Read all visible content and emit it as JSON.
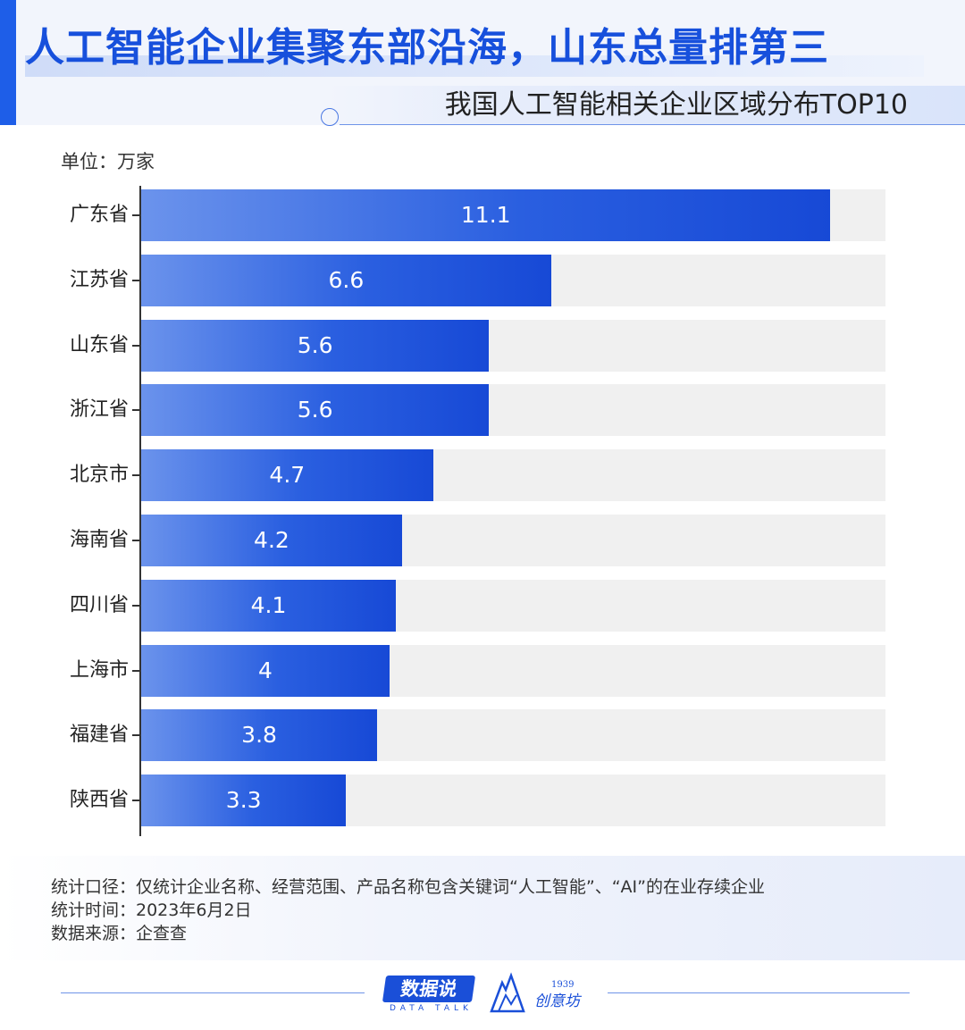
{
  "header": {
    "title": "人工智能企业集聚东部沿海，山东总量排第三",
    "subtitle": "我国人工智能相关企业区域分布TOP10"
  },
  "unit_label": "单位：万家",
  "chart_data": {
    "type": "bar",
    "orientation": "horizontal",
    "title": "我国人工智能相关企业区域分布TOP10",
    "unit": "万家",
    "categories": [
      "广东省",
      "江苏省",
      "山东省",
      "浙江省",
      "北京市",
      "海南省",
      "四川省",
      "上海市",
      "福建省",
      "陕西省"
    ],
    "values": [
      11.1,
      6.6,
      5.6,
      5.6,
      4.7,
      4.2,
      4.1,
      4,
      3.8,
      3.3
    ],
    "xlim": [
      0,
      12
    ],
    "data_labels": "inside",
    "colors": {
      "bar": "#1e5ee8",
      "track": "#f0f0f0"
    }
  },
  "notes": [
    "统计口径：仅统计企业名称、经营范围、产品名称包含关键词“人工智能”、“AI”的在业存续企业",
    "统计时间：2023年6月2日",
    "数据来源：企查查"
  ],
  "footer": {
    "brand": "数据说",
    "brand_sub": "DATA TALK",
    "partner": "创意坊",
    "partner_year": "1939"
  },
  "colors": {
    "accent": "#1e5ee8",
    "title": "#1750dc"
  }
}
